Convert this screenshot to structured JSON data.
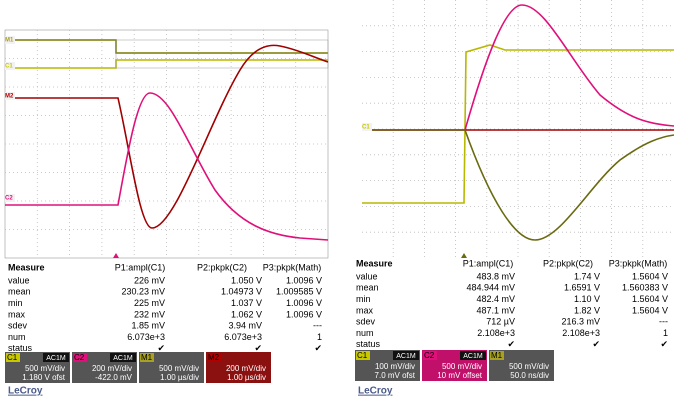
{
  "scopes": [
    {
      "markers": [
        "M1",
        "C1",
        "M2",
        "C2"
      ],
      "measure": {
        "headers": [
          "Measure",
          "P1:ampl(C1)",
          "P2:pkpk(C2)",
          "P3:pkpk(Math)"
        ],
        "rows": [
          [
            "value",
            "226 mV",
            "1.050 V",
            "1.0096 V"
          ],
          [
            "mean",
            "230.23 mV",
            "1.04973 V",
            "1.009585 V"
          ],
          [
            "min",
            "225 mV",
            "1.037 V",
            "1.0096 V"
          ],
          [
            "max",
            "232 mV",
            "1.062 V",
            "1.0096 V"
          ],
          [
            "sdev",
            "1.85 mV",
            "3.94 mV",
            "---"
          ],
          [
            "num",
            "6.073e+3",
            "6.073e+3",
            "1"
          ],
          [
            "status",
            "✔",
            "✔",
            "✔"
          ]
        ]
      },
      "channels": [
        {
          "name": "C1",
          "coupling": "AC1M",
          "scale": "500 mV/div",
          "offset": "1.180 V ofst"
        },
        {
          "name": "C2",
          "coupling": "AC1M",
          "scale": "200 mV/div",
          "offset": "-422.0 mV"
        },
        {
          "name": "M1",
          "scale": "500 mV/div",
          "offset": "1.00 µs/div"
        },
        {
          "name": "M2",
          "scale": "200 mV/div",
          "offset": "1.00 µs/div"
        }
      ],
      "brand": "LeCroy"
    },
    {
      "markers": [
        "C1"
      ],
      "measure": {
        "headers": [
          "Measure",
          "P1:ampl(C1)",
          "P2:pkpk(C2)",
          "P3:pkpk(Math)"
        ],
        "rows": [
          [
            "value",
            "483.8 mV",
            "1.74 V",
            "1.5604 V"
          ],
          [
            "mean",
            "484.944 mV",
            "1.6591 V",
            "1.560383 V"
          ],
          [
            "min",
            "482.4 mV",
            "1.10 V",
            "1.5604 V"
          ],
          [
            "max",
            "487.1 mV",
            "1.82 V",
            "1.5604 V"
          ],
          [
            "sdev",
            "712 µV",
            "216.3 mV",
            "---"
          ],
          [
            "num",
            "2.108e+3",
            "2.108e+3",
            "1"
          ],
          [
            "status",
            "✔",
            "✔",
            "✔"
          ]
        ]
      },
      "channels": [
        {
          "name": "C1",
          "coupling": "AC1M",
          "scale": "100 mV/div",
          "offset": "7.0 mV ofst"
        },
        {
          "name": "C2",
          "coupling": "AC1M",
          "scale": "500 mV/div",
          "offset": "10 mV offset"
        },
        {
          "name": "M1",
          "scale": "500 mV/div",
          "offset": "50.0 ns/div"
        }
      ],
      "brand": "LeCroy"
    }
  ]
}
